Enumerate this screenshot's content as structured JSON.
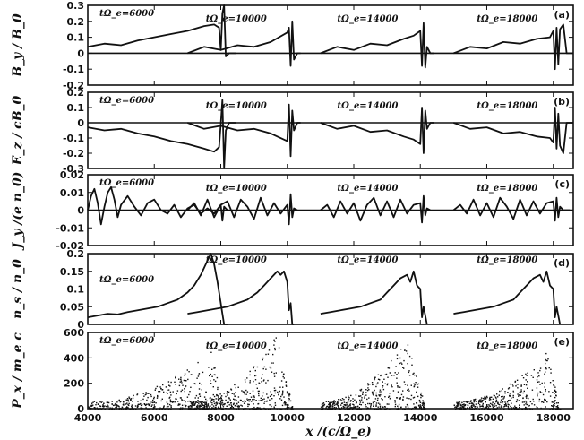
{
  "chart_data": {
    "type": "line",
    "x_ticks": [
      "4000",
      "6000",
      "8000",
      "10000",
      "12000",
      "14000",
      "16000",
      "18000"
    ],
    "xlabel": "x /(c/Ω_e)",
    "xlim": [
      4000,
      18600
    ],
    "panels": [
      {
        "tag": "(a)",
        "ylabel": "B_y / B_0",
        "ylim": [
          -0.2,
          0.3
        ],
        "y_ticks": [
          "0.3",
          "0.2",
          "0.1",
          "0",
          "-0.1",
          "-0.2"
        ],
        "annotations": [
          "tΩ_e=6000",
          "tΩ_e=10000",
          "tΩ_e=14000",
          "tΩ_e=18000"
        ],
        "series": [
          {
            "x": [
              4000,
              4500,
              5000,
              5500,
              6000,
              6500,
              7000,
              7500,
              7800,
              7950,
              8000,
              8050,
              8100,
              8150,
              8250,
              8450
            ],
            "y": [
              0.04,
              0.06,
              0.05,
              0.08,
              0.1,
              0.12,
              0.14,
              0.17,
              0.18,
              0.16,
              0.02,
              0.25,
              0.3,
              -0.02,
              0.0,
              0.0
            ]
          },
          {
            "x": [
              7000,
              7500,
              8000,
              8500,
              9000,
              9500,
              10000,
              10050,
              10100,
              10150,
              10200,
              10300,
              10400
            ],
            "y": [
              0.0,
              0.04,
              0.02,
              0.05,
              0.04,
              0.07,
              0.13,
              0.16,
              -0.08,
              0.2,
              -0.04,
              0.0,
              0.0
            ]
          },
          {
            "x": [
              11000,
              11500,
              12000,
              12500,
              13000,
              13500,
              13800,
              14000,
              14050,
              14100,
              14150,
              14200,
              14300,
              14400
            ],
            "y": [
              0.0,
              0.04,
              0.02,
              0.06,
              0.05,
              0.09,
              0.11,
              0.14,
              -0.08,
              0.19,
              -0.09,
              0.04,
              0.0,
              0.0
            ]
          },
          {
            "x": [
              15000,
              15500,
              16000,
              16500,
              17000,
              17500,
              17900,
              18000,
              18050,
              18100,
              18150,
              18200,
              18300,
              18400,
              18600
            ],
            "y": [
              0.0,
              0.04,
              0.03,
              0.07,
              0.06,
              0.09,
              0.1,
              0.14,
              -0.1,
              0.16,
              -0.07,
              0.15,
              0.18,
              0.0,
              0.0
            ]
          }
        ]
      },
      {
        "tag": "(b)",
        "ylabel": "E_z / cB_0",
        "ylim": [
          -0.3,
          0.2
        ],
        "y_ticks": [
          "0.2",
          "0.1",
          "0",
          "-0.1",
          "-0.2",
          "-0.3"
        ],
        "annotations": [
          "tΩ_e=6000",
          "tΩ_e=10000",
          "tΩ_e=14000",
          "tΩ_e=18000"
        ],
        "series": [
          {
            "x": [
              4000,
              4500,
              5000,
              5500,
              6000,
              6500,
              7000,
              7500,
              7800,
              7950,
              8000,
              8050,
              8100,
              8150,
              8250,
              8450
            ],
            "y": [
              -0.03,
              -0.05,
              -0.04,
              -0.07,
              -0.09,
              -0.12,
              -0.14,
              -0.17,
              -0.19,
              -0.16,
              -0.01,
              0.15,
              -0.3,
              -0.05,
              0.0,
              0.0
            ]
          },
          {
            "x": [
              7000,
              7500,
              8000,
              8500,
              9000,
              9500,
              10000,
              10050,
              10100,
              10150,
              10200,
              10300,
              10400
            ],
            "y": [
              0.0,
              -0.04,
              -0.02,
              -0.05,
              -0.04,
              -0.07,
              -0.12,
              0.12,
              -0.22,
              0.08,
              -0.05,
              0.0,
              0.0
            ]
          },
          {
            "x": [
              11000,
              11500,
              12000,
              12500,
              13000,
              13500,
              13800,
              14000,
              14050,
              14100,
              14150,
              14200,
              14300,
              14400
            ],
            "y": [
              0.0,
              -0.04,
              -0.02,
              -0.06,
              -0.05,
              -0.09,
              -0.11,
              -0.14,
              0.1,
              -0.2,
              0.08,
              -0.04,
              0.0,
              0.0
            ]
          },
          {
            "x": [
              15000,
              15500,
              16000,
              16500,
              17000,
              17500,
              17900,
              18000,
              18050,
              18100,
              18150,
              18200,
              18300,
              18400,
              18600
            ],
            "y": [
              0.0,
              -0.04,
              -0.03,
              -0.07,
              -0.06,
              -0.09,
              -0.1,
              -0.13,
              0.1,
              -0.17,
              0.06,
              -0.15,
              -0.2,
              0.0,
              0.0
            ]
          }
        ]
      },
      {
        "tag": "(c)",
        "ylabel": "J_y /(e n_0)",
        "ylim": [
          -0.02,
          0.02
        ],
        "y_ticks": [
          "0.02",
          "0.01",
          "0",
          "-0.01",
          "-0.02"
        ],
        "annotations": [
          "tΩ_e=6000",
          "tΩ_e=10000",
          "tΩ_e=14000",
          "tΩ_e=18000"
        ],
        "series": [
          {
            "x": [
              4000,
              4100,
              4200,
              4300,
              4400,
              4500,
              4600,
              4700,
              4800,
              4900,
              5000,
              5200,
              5400,
              5600,
              5800,
              6000,
              6200,
              6400,
              6600,
              6800,
              7000,
              7200,
              7400,
              7600,
              7800,
              8000,
              8050,
              8100,
              8200
            ],
            "y": [
              0.0,
              0.008,
              0.012,
              0.004,
              -0.008,
              0.002,
              0.01,
              0.013,
              0.006,
              -0.004,
              0.003,
              0.008,
              0.002,
              -0.003,
              0.004,
              0.006,
              0.0,
              -0.002,
              0.003,
              -0.004,
              0.001,
              0.003,
              -0.002,
              0.001,
              -0.002,
              0.003,
              -0.006,
              0.002,
              0.0
            ]
          },
          {
            "x": [
              7000,
              7200,
              7400,
              7600,
              7800,
              8000,
              8200,
              8400,
              8600,
              8800,
              9000,
              9200,
              9400,
              9600,
              9800,
              10000,
              10050,
              10100,
              10150,
              10200,
              10300
            ],
            "y": [
              0.0,
              0.004,
              -0.003,
              0.006,
              -0.004,
              0.003,
              0.005,
              -0.004,
              0.006,
              0.002,
              -0.005,
              0.007,
              -0.003,
              0.004,
              -0.002,
              0.003,
              -0.008,
              0.009,
              -0.004,
              0.001,
              0.0
            ]
          },
          {
            "x": [
              11000,
              11200,
              11400,
              11600,
              11800,
              12000,
              12200,
              12400,
              12600,
              12800,
              13000,
              13200,
              13400,
              13600,
              13800,
              14000,
              14050,
              14100,
              14150,
              14200,
              14300
            ],
            "y": [
              0.0,
              0.003,
              -0.004,
              0.005,
              -0.002,
              0.004,
              -0.006,
              0.003,
              0.007,
              -0.003,
              0.005,
              -0.004,
              0.006,
              -0.002,
              0.003,
              0.004,
              -0.007,
              0.008,
              -0.003,
              0.001,
              0.0
            ]
          },
          {
            "x": [
              15000,
              15200,
              15400,
              15600,
              15800,
              16000,
              16200,
              16400,
              16600,
              16800,
              17000,
              17200,
              17400,
              17600,
              17800,
              18000,
              18050,
              18100,
              18150,
              18200,
              18300,
              18500
            ],
            "y": [
              0.0,
              0.003,
              -0.002,
              0.006,
              -0.003,
              0.004,
              -0.004,
              0.007,
              0.002,
              -0.005,
              0.006,
              -0.003,
              0.005,
              -0.002,
              0.004,
              0.005,
              -0.006,
              0.007,
              -0.004,
              0.002,
              0.0,
              0.0
            ]
          }
        ]
      },
      {
        "tag": "(d)",
        "ylabel": "n_s / n_0",
        "ylim": [
          0.0,
          0.2
        ],
        "y_ticks": [
          "0.2",
          "0.15",
          "0.1",
          "0.05",
          "0"
        ],
        "annotations": [
          "tΩ_e=6000",
          "tΩ_e=10000",
          "tΩ_e=14000",
          "tΩ_e=18000"
        ],
        "series": [
          {
            "x": [
              4000,
              4300,
              4600,
              4900,
              5200,
              5500,
              5800,
              6100,
              6400,
              6700,
              7000,
              7200,
              7400,
              7600,
              7700,
              7800,
              7900,
              8000,
              8050,
              8100,
              8200
            ],
            "y": [
              0.02,
              0.025,
              0.03,
              0.028,
              0.035,
              0.04,
              0.045,
              0.05,
              0.06,
              0.07,
              0.09,
              0.11,
              0.14,
              0.18,
              0.2,
              0.17,
              0.12,
              0.06,
              0.03,
              0.0,
              0.0
            ]
          },
          {
            "x": [
              7000,
              7300,
              7600,
              7900,
              8200,
              8500,
              8800,
              9100,
              9300,
              9500,
              9700,
              9800,
              9900,
              10000,
              10050,
              10100,
              10150,
              10200
            ],
            "y": [
              0.03,
              0.035,
              0.04,
              0.045,
              0.05,
              0.06,
              0.07,
              0.09,
              0.11,
              0.13,
              0.15,
              0.14,
              0.15,
              0.12,
              0.04,
              0.06,
              0.0,
              0.0
            ]
          },
          {
            "x": [
              11000,
              11300,
              11600,
              11900,
              12200,
              12500,
              12800,
              13000,
              13200,
              13400,
              13600,
              13700,
              13800,
              13900,
              14000,
              14050,
              14100,
              14200
            ],
            "y": [
              0.03,
              0.035,
              0.04,
              0.045,
              0.05,
              0.06,
              0.07,
              0.09,
              0.11,
              0.13,
              0.14,
              0.12,
              0.15,
              0.11,
              0.1,
              0.02,
              0.05,
              0.0
            ]
          },
          {
            "x": [
              15000,
              15300,
              15600,
              15900,
              16200,
              16500,
              16800,
              17000,
              17200,
              17400,
              17600,
              17700,
              17800,
              17900,
              18000,
              18050,
              18100,
              18200
            ],
            "y": [
              0.03,
              0.035,
              0.04,
              0.045,
              0.05,
              0.06,
              0.07,
              0.09,
              0.11,
              0.13,
              0.14,
              0.12,
              0.15,
              0.11,
              0.1,
              0.02,
              0.05,
              0.0
            ]
          }
        ]
      },
      {
        "tag": "(e)",
        "ylabel": "P_x / m_e c",
        "ylim": [
          0,
          600
        ],
        "y_ticks": [
          "600",
          "400",
          "200",
          "0"
        ],
        "annotations": [
          "tΩ_e=6000",
          "tΩ_e=10000",
          "tΩ_e=14000",
          "tΩ_e=18000"
        ],
        "type": "scatter",
        "clusters": [
          {
            "x_range": [
              4000,
              8150
            ],
            "peak_x": 7700,
            "peak_p": 450
          },
          {
            "x_range": [
              7000,
              10150
            ],
            "peak_x": 9700,
            "peak_p": 600
          },
          {
            "x_range": [
              11000,
              14150
            ],
            "peak_x": 13600,
            "peak_p": 550
          },
          {
            "x_range": [
              15000,
              18200
            ],
            "peak_x": 17800,
            "peak_p": 450
          }
        ]
      }
    ]
  }
}
